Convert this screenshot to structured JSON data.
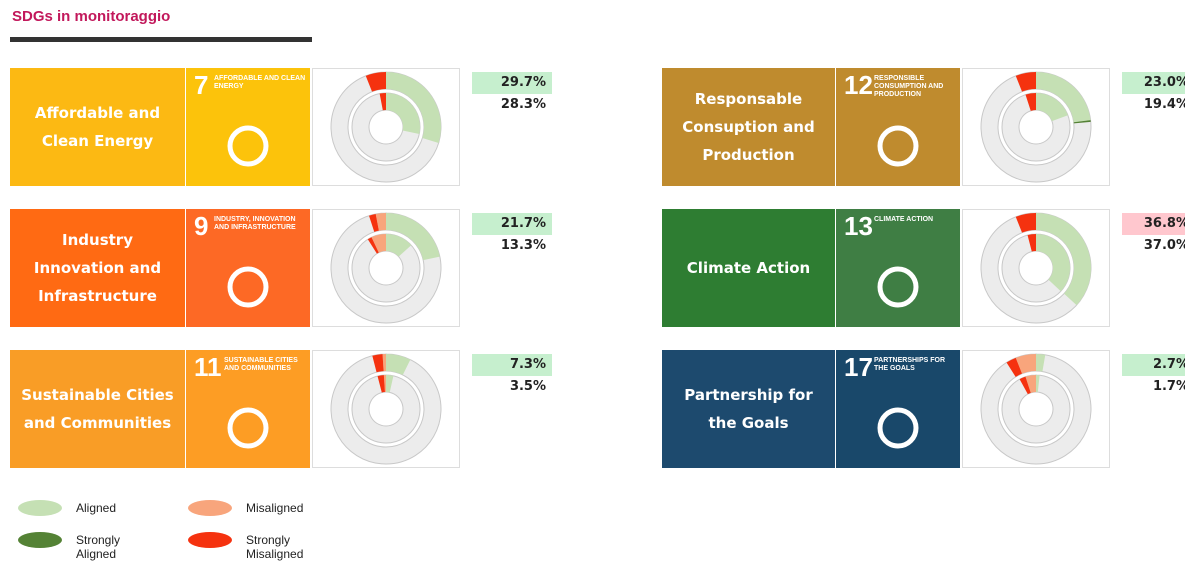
{
  "title": "SDGs in monitoraggio",
  "legend": [
    {
      "name": "Aligned",
      "color": "#c5e0b4"
    },
    {
      "name": "Strongly Aligned",
      "color": "#548235"
    },
    {
      "name": "Misaligned",
      "color": "#f8a57c"
    },
    {
      "name": "Strongly Misaligned",
      "color": "#f5320f"
    }
  ],
  "cards": [
    {
      "label": "Affordable and Clean Energy",
      "number": "7",
      "icon_title": "AFFORDABLE AND CLEAN ENERGY",
      "label_color": "#fcb913",
      "icon_color": "#fcc30b",
      "values": [
        [
          29.7,
          28.3
        ],
        [
          0,
          0
        ],
        [
          0,
          0
        ],
        [
          6,
          3
        ]
      ],
      "labels": [
        "29.7%",
        "28.3%"
      ],
      "highlight": "#c6efce"
    },
    {
      "label": "Industry Innovation and Infrastructure",
      "number": "9",
      "icon_title": "INDUSTRY, INNOVATION AND INFRASTRUCTURE",
      "label_color": "#ff6a13",
      "icon_color": "#fd6925",
      "values": [
        [
          21.7,
          13.3
        ],
        [
          0,
          0
        ],
        [
          3,
          7
        ],
        [
          2,
          2
        ]
      ],
      "labels": [
        "21.7%",
        "13.3%"
      ],
      "highlight": "#c6efce"
    },
    {
      "label": "Sustainable Cities and Communities",
      "number": "11",
      "icon_title": "SUSTAINABLE CITIES AND COMMUNITIES",
      "label_color": "#f99d26",
      "icon_color": "#fd9d24",
      "values": [
        [
          7.3,
          3.5
        ],
        [
          0,
          0
        ],
        [
          1,
          1
        ],
        [
          3,
          3
        ]
      ],
      "labels": [
        "7.3%",
        "3.5%"
      ],
      "highlight": "#c6efce"
    },
    {
      "label": "Responsable Consuption and Production",
      "number": "12",
      "icon_title": "RESPONSIBLE CONSUMPTION AND PRODUCTION",
      "label_color": "#bf8b2e",
      "icon_color": "#bf8b2e",
      "values": [
        [
          23.0,
          19.4
        ],
        [
          0.5,
          0
        ],
        [
          0,
          0
        ],
        [
          6,
          5
        ]
      ],
      "labels": [
        "23.0%",
        "19.4%"
      ],
      "highlight": "#c6efce"
    },
    {
      "label": "Climate Action",
      "number": "13",
      "icon_title": "CLIMATE ACTION",
      "label_color": "#2e7d32",
      "icon_color": "#3f7e44",
      "values": [
        [
          36.8,
          37.0
        ],
        [
          0,
          0
        ],
        [
          0,
          0
        ],
        [
          6,
          4
        ]
      ],
      "labels": [
        "36.8%",
        "37.0%"
      ],
      "highlight": "#ffc7ce"
    },
    {
      "label": "Partnership for the Goals",
      "number": "17",
      "icon_title": "PARTNERSHIPS FOR THE GOALS",
      "label_color": "#1d4a6e",
      "icon_color": "#19486a",
      "values": [
        [
          2.7,
          1.7
        ],
        [
          0,
          0
        ],
        [
          6,
          5
        ],
        [
          3,
          3
        ]
      ],
      "labels": [
        "2.7%",
        "1.7%"
      ],
      "highlight": "#c6efce"
    }
  ]
}
